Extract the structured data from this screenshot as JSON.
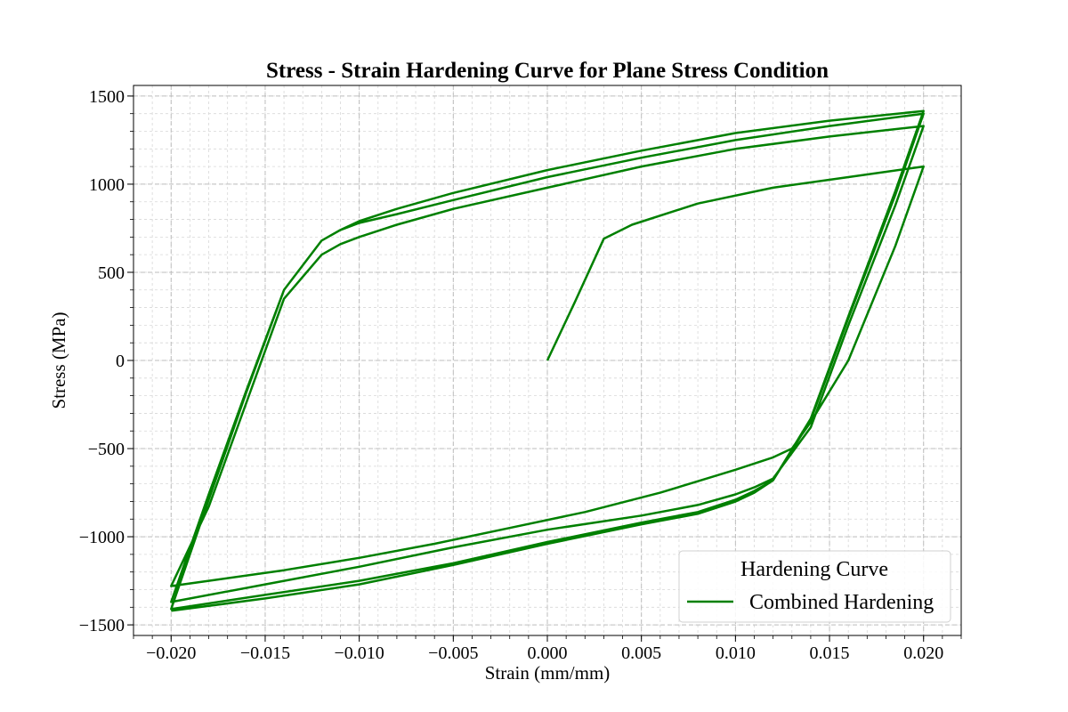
{
  "chart_data": {
    "type": "line",
    "title": "Stress - Strain Hardening Curve for Plane Stress Condition",
    "xlabel": "Strain (mm/mm)",
    "ylabel": "Stress (MPa)",
    "xlim": [
      -0.022,
      0.022
    ],
    "ylim": [
      -1560,
      1560
    ],
    "xticks": [
      -0.02,
      -0.015,
      -0.01,
      -0.005,
      0.0,
      0.005,
      0.01,
      0.015,
      0.02
    ],
    "xtick_labels": [
      "−0.020",
      "−0.015",
      "−0.010",
      "−0.005",
      "0.000",
      "0.005",
      "0.010",
      "0.015",
      "0.020"
    ],
    "yticks": [
      -1500,
      -1000,
      -500,
      0,
      500,
      1000,
      1500
    ],
    "ytick_labels": [
      "−1500",
      "−1000",
      "−500",
      "0",
      "500",
      "1000",
      "1500"
    ],
    "grid": true,
    "minor_grid": true,
    "legend": {
      "title": "Hardening Curve",
      "placement": "lower-right"
    },
    "color": "#008000",
    "series": [
      {
        "name": "Combined Hardening",
        "x": [
          0.0,
          0.0015,
          0.003,
          0.0045,
          0.008,
          0.012,
          0.016,
          0.02,
          0.0185,
          0.016,
          0.014,
          0.013,
          0.012,
          0.01,
          0.006,
          0.002,
          -0.002,
          -0.006,
          -0.01,
          -0.014,
          -0.018,
          -0.02,
          -0.018,
          -0.016,
          -0.014,
          -0.012,
          -0.011,
          -0.01,
          -0.008,
          -0.005,
          0.0,
          0.005,
          0.01,
          0.015,
          0.02,
          0.0185,
          0.016,
          0.014,
          0.012,
          0.011,
          0.01,
          0.008,
          0.005,
          0.0,
          -0.005,
          -0.01,
          -0.015,
          -0.02,
          -0.018,
          -0.016,
          -0.014,
          -0.012,
          -0.011,
          -0.01,
          -0.008,
          -0.005,
          0.0,
          0.005,
          0.01,
          0.015,
          0.02,
          0.0185,
          0.016,
          0.014,
          0.012,
          0.011,
          0.01,
          0.008,
          0.005,
          0.0,
          -0.005,
          -0.01,
          -0.015,
          -0.02,
          -0.018,
          -0.016,
          -0.014,
          -0.012,
          -0.011,
          -0.01,
          -0.008,
          -0.005,
          0.0,
          0.005,
          0.01,
          0.015,
          0.02,
          0.0185,
          0.016,
          0.014,
          0.012,
          0.011,
          0.01,
          0.008,
          0.005,
          0.0,
          -0.005,
          -0.01,
          -0.015,
          -0.02
        ],
        "y": [
          0,
          340,
          690,
          770,
          890,
          980,
          1040,
          1100,
          650,
          0,
          -350,
          -500,
          -550,
          -620,
          -750,
          -860,
          -950,
          -1040,
          -1120,
          -1190,
          -1250,
          -1280,
          -830,
          -240,
          350,
          600,
          660,
          700,
          770,
          860,
          980,
          1100,
          1200,
          1270,
          1330,
          880,
          200,
          -380,
          -670,
          -720,
          -760,
          -820,
          -880,
          -960,
          -1060,
          -1170,
          -1270,
          -1370,
          -760,
          -170,
          400,
          680,
          740,
          780,
          830,
          910,
          1040,
          1150,
          1250,
          1330,
          1400,
          940,
          240,
          -340,
          -680,
          -740,
          -790,
          -860,
          -920,
          -1030,
          -1150,
          -1250,
          -1330,
          -1410,
          -790,
          -180,
          400,
          680,
          740,
          790,
          860,
          950,
          1080,
          1190,
          1290,
          1360,
          1415,
          960,
          250,
          -330,
          -680,
          -750,
          -800,
          -870,
          -930,
          -1040,
          -1160,
          -1270,
          -1350,
          -1420
        ]
      }
    ]
  }
}
